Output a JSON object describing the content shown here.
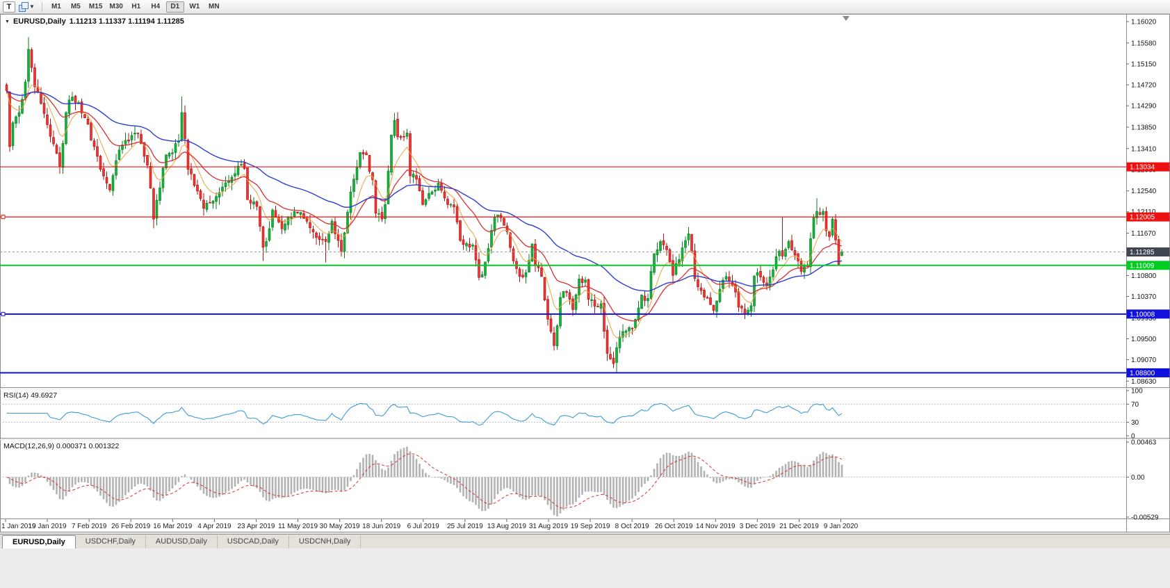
{
  "toolbar": {
    "t_button": "T",
    "objects_icon": "chart-objects-icon",
    "timeframes": [
      "M1",
      "M5",
      "M15",
      "M30",
      "H1",
      "H4",
      "D1",
      "W1",
      "MN"
    ],
    "active_timeframe": "D1"
  },
  "header": {
    "collapse_glyph": "▼",
    "symbol": "EURUSD,Daily",
    "ohlc": "1.11213 1.11337 1.11194 1.11285"
  },
  "price_axis": {
    "min": 1.0852,
    "max": 1.1615,
    "ticks": [
      "1.16020",
      "1.15580",
      "1.15150",
      "1.14720",
      "1.14290",
      "1.13850",
      "1.13410",
      "1.12980",
      "1.12540",
      "1.12110",
      "1.11670",
      "1.11240",
      "1.10800",
      "1.10370",
      "1.09930",
      "1.09500",
      "1.09070",
      "1.08630"
    ]
  },
  "levels": [
    {
      "label": "1.13034",
      "price": 1.13034,
      "color": "#ee1111",
      "width": 1.2,
      "handle": false
    },
    {
      "label": "1.12005",
      "price": 1.12005,
      "color": "#ee1111",
      "width": 1.2,
      "handle": true
    },
    {
      "label": "1.11009",
      "price": 1.11009,
      "color": "#00cc22",
      "width": 2,
      "handle": false
    },
    {
      "label": "1.10008",
      "price": 1.10008,
      "color": "#1111dd",
      "width": 2,
      "handle": true
    },
    {
      "label": "1.08800",
      "price": 1.088,
      "color": "#1111dd",
      "width": 2,
      "handle": false
    }
  ],
  "current_price": {
    "label": "1.11285",
    "value": 1.11285,
    "badge_color": "#3f4652",
    "line_color": "#9a9a9a"
  },
  "date_axis": {
    "labels": [
      "1 Jan 2019",
      "19 Jan 2019",
      "7 Feb 2019",
      "26 Feb 2019",
      "16 Mar 2019",
      "4 Apr 2019",
      "23 Apr 2019",
      "11 May 2019",
      "30 May 2019",
      "18 Jun 2019",
      "6 Jul 2019",
      "25 Jul 2019",
      "13 Aug 2019",
      "31 Aug 2019",
      "19 Sep 2019",
      "8 Oct 2019",
      "26 Oct 2019",
      "14 Nov 2019",
      "3 Dec 2019",
      "21 Dec 2019",
      "9 Jan 2020"
    ]
  },
  "rsi_panel": {
    "label": "RSI(14) 49.6927",
    "ticks": [
      "100",
      "70",
      "30",
      "0"
    ],
    "guide_levels": [
      70,
      30
    ],
    "line_color": "#3d9bd5"
  },
  "macd_panel": {
    "label": "MACD(12,26,9) 0.000371 0.001322",
    "ticks": [
      "0.00463",
      "0.00",
      "-0.00529"
    ],
    "scale_min": -0.00529,
    "scale_max": 0.00463,
    "hist_color": "#b2b2b2",
    "signal_color": "#d93030"
  },
  "tabs": [
    "EURUSD,Daily",
    "USDCHF,Daily",
    "AUDUSD,Daily",
    "USDCAD,Daily",
    "USDCNH,Daily"
  ],
  "active_tab": "EURUSD,Daily",
  "chart_data": {
    "type": "candlestick",
    "symbol": "EURUSD",
    "timeframe": "Daily",
    "x_range": [
      "1 Jan 2019",
      "9 Jan 2020"
    ],
    "y_range": [
      1.0852,
      1.1615
    ],
    "n_candles": 268,
    "seed": 7,
    "up_color": "#12b33c",
    "up_edge": "#0a7d22",
    "down_color": "#ef3434",
    "down_edge": "#a81212",
    "last_candle": {
      "open": 1.11213,
      "high": 1.11337,
      "low": 1.11194,
      "close": 1.11285
    },
    "close_anchors": [
      [
        0,
        1.146
      ],
      [
        1,
        1.1345
      ],
      [
        2,
        1.1394
      ],
      [
        4,
        1.1415
      ],
      [
        6,
        1.1478
      ],
      [
        7,
        1.1545
      ],
      [
        9,
        1.1468
      ],
      [
        12,
        1.1413
      ],
      [
        14,
        1.1366
      ],
      [
        17,
        1.1305
      ],
      [
        19,
        1.1415
      ],
      [
        21,
        1.1447
      ],
      [
        23,
        1.1436
      ],
      [
        25,
        1.1404
      ],
      [
        28,
        1.1345
      ],
      [
        32,
        1.127
      ],
      [
        33,
        1.1256
      ],
      [
        36,
        1.1338
      ],
      [
        40,
        1.1368
      ],
      [
        42,
        1.1373
      ],
      [
        45,
        1.1307
      ],
      [
        47,
        1.1196
      ],
      [
        48,
        1.1235
      ],
      [
        51,
        1.1328
      ],
      [
        55,
        1.1356
      ],
      [
        56,
        1.1415
      ],
      [
        58,
        1.1298
      ],
      [
        60,
        1.1265
      ],
      [
        63,
        1.1218
      ],
      [
        65,
        1.123
      ],
      [
        69,
        1.1262
      ],
      [
        72,
        1.1282
      ],
      [
        74,
        1.1305
      ],
      [
        76,
        1.13
      ],
      [
        77,
        1.1236
      ],
      [
        80,
        1.1222
      ],
      [
        82,
        1.1138
      ],
      [
        83,
        1.115
      ],
      [
        85,
        1.1215
      ],
      [
        88,
        1.1176
      ],
      [
        90,
        1.12
      ],
      [
        94,
        1.121
      ],
      [
        97,
        1.1178
      ],
      [
        99,
        1.1158
      ],
      [
        102,
        1.115
      ],
      [
        104,
        1.1192
      ],
      [
        107,
        1.113
      ],
      [
        108,
        1.1168
      ],
      [
        110,
        1.1252
      ],
      [
        113,
        1.1333
      ],
      [
        115,
        1.1328
      ],
      [
        117,
        1.1277
      ],
      [
        118,
        1.1208
      ],
      [
        120,
        1.1196
      ],
      [
        121,
        1.1226
      ],
      [
        122,
        1.1295
      ],
      [
        123,
        1.1369
      ],
      [
        124,
        1.1399
      ],
      [
        125,
        1.1365
      ],
      [
        128,
        1.1373
      ],
      [
        129,
        1.1285
      ],
      [
        131,
        1.1278
      ],
      [
        133,
        1.1226
      ],
      [
        136,
        1.1252
      ],
      [
        138,
        1.127
      ],
      [
        141,
        1.1226
      ],
      [
        143,
        1.1221
      ],
      [
        145,
        1.1152
      ],
      [
        147,
        1.1146
      ],
      [
        149,
        1.1143
      ],
      [
        151,
        1.1076
      ],
      [
        153,
        1.1108
      ],
      [
        156,
        1.12
      ],
      [
        158,
        1.1199
      ],
      [
        160,
        1.117
      ],
      [
        162,
        1.111
      ],
      [
        164,
        1.1078
      ],
      [
        166,
        1.1086
      ],
      [
        168,
        1.1145
      ],
      [
        169,
        1.11
      ],
      [
        171,
        1.1078
      ],
      [
        173,
        1.099
      ],
      [
        175,
        1.0936
      ],
      [
        177,
        1.1035
      ],
      [
        179,
        1.1045
      ],
      [
        181,
        1.101
      ],
      [
        183,
        1.1073
      ],
      [
        185,
        1.1071
      ],
      [
        186,
        1.1031
      ],
      [
        188,
        1.1017
      ],
      [
        190,
        1.1022
      ],
      [
        192,
        1.092
      ],
      [
        194,
        1.0899
      ],
      [
        195,
        1.0932
      ],
      [
        197,
        1.0965
      ],
      [
        199,
        1.0973
      ],
      [
        201,
        1.099
      ],
      [
        203,
        1.104
      ],
      [
        205,
        1.1033
      ],
      [
        207,
        1.1125
      ],
      [
        209,
        1.115
      ],
      [
        211,
        1.1133
      ],
      [
        213,
        1.108
      ],
      [
        215,
        1.1113
      ],
      [
        217,
        1.1152
      ],
      [
        218,
        1.1166
      ],
      [
        220,
        1.1074
      ],
      [
        222,
        1.1049
      ],
      [
        224,
        1.1033
      ],
      [
        226,
        1.1008
      ],
      [
        228,
        1.1052
      ],
      [
        230,
        1.1078
      ],
      [
        232,
        1.1059
      ],
      [
        234,
        1.1015
      ],
      [
        236,
        1.1
      ],
      [
        238,
        1.1018
      ],
      [
        239,
        1.1079
      ],
      [
        241,
        1.1077
      ],
      [
        243,
        1.1059
      ],
      [
        245,
        1.1092
      ],
      [
        247,
        1.113
      ],
      [
        248,
        1.112
      ],
      [
        250,
        1.115
      ],
      [
        252,
        1.1122
      ],
      [
        254,
        1.1088
      ],
      [
        256,
        1.1098
      ],
      [
        258,
        1.1199
      ],
      [
        259,
        1.1212
      ],
      [
        261,
        1.1212
      ],
      [
        262,
        1.1172
      ],
      [
        263,
        1.116
      ],
      [
        264,
        1.1196
      ],
      [
        265,
        1.1153
      ],
      [
        266,
        1.1103
      ],
      [
        267,
        1.11285
      ]
    ],
    "overrides": [
      {
        "i": 7,
        "high": 1.157
      },
      {
        "i": 17,
        "low": 1.1289
      },
      {
        "i": 47,
        "low": 1.1177
      },
      {
        "i": 56,
        "high": 1.1448
      },
      {
        "i": 82,
        "low": 1.111
      },
      {
        "i": 102,
        "low": 1.1107
      },
      {
        "i": 175,
        "low": 1.0926
      },
      {
        "i": 195,
        "low": 1.0879
      },
      {
        "i": 248,
        "high": 1.12
      },
      {
        "i": 259,
        "high": 1.1239
      }
    ],
    "moving_averages": [
      {
        "type": "ema",
        "period": 8,
        "color": "#eba23a",
        "width": 1
      },
      {
        "type": "ema",
        "period": 21,
        "color": "#d93030",
        "width": 1.3
      },
      {
        "type": "ema",
        "period": 55,
        "color": "#2a3fd0",
        "width": 1.4
      }
    ],
    "rsi": {
      "period": 14,
      "last_value": 49.6927
    },
    "macd": {
      "fast": 12,
      "slow": 26,
      "signal": 9,
      "last_main": 0.000371,
      "last_signal": 0.001322
    }
  }
}
